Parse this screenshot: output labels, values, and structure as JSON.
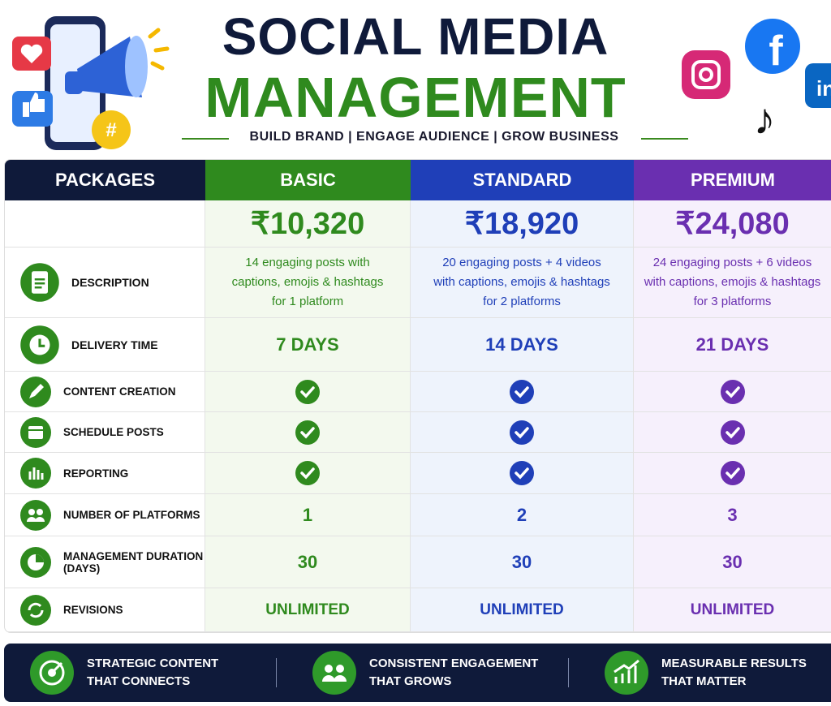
{
  "header": {
    "title_line1": "SOCIAL MEDIA",
    "title_line2": "MANAGEMENT",
    "tagline": "BUILD BRAND | ENGAGE AUDIENCE | GROW BUSINESS"
  },
  "table": {
    "columns": [
      "PACKAGES",
      "BASIC",
      "STANDARD",
      "PREMIUM"
    ],
    "prices": [
      "₹10,320",
      "₹18,920",
      "₹24,080"
    ],
    "rows": [
      {
        "label": "DESCRIPTION",
        "cells": [
          "14 engaging posts with\ncaptions, emojis & hashtags\nfor 1 platform",
          "20 engaging posts + 4 videos\nwith captions, emojis & hashtags\nfor 2 platforms",
          "24 engaging posts + 6 videos\nwith captions, emojis & hashtags\nfor 3 platforms"
        ]
      },
      {
        "label": "DELIVERY TIME",
        "cells": [
          "7 DAYS",
          "14 DAYS",
          "21 DAYS"
        ]
      },
      {
        "label": "CONTENT CREATION"
      },
      {
        "label": "SCHEDULE POSTS"
      },
      {
        "label": "REPORTING"
      },
      {
        "label": "NUMBER OF PLATFORMS",
        "cells": [
          1,
          2,
          3
        ]
      },
      {
        "label": "MANAGEMENT DURATION (DAYS)",
        "cells": [
          30,
          30,
          30
        ]
      },
      {
        "label": "REVISIONS",
        "cells": [
          "UNLIMITED",
          "UNLIMITED",
          "UNLIMITED"
        ]
      }
    ]
  },
  "footer": {
    "items": [
      "STRATEGIC CONTENT\nTHAT CONNECTS",
      "CONSISTENT ENGAGEMENT\nTHAT GROWS",
      "MEASURABLE RESULTS\nTHAT MATTER"
    ]
  }
}
